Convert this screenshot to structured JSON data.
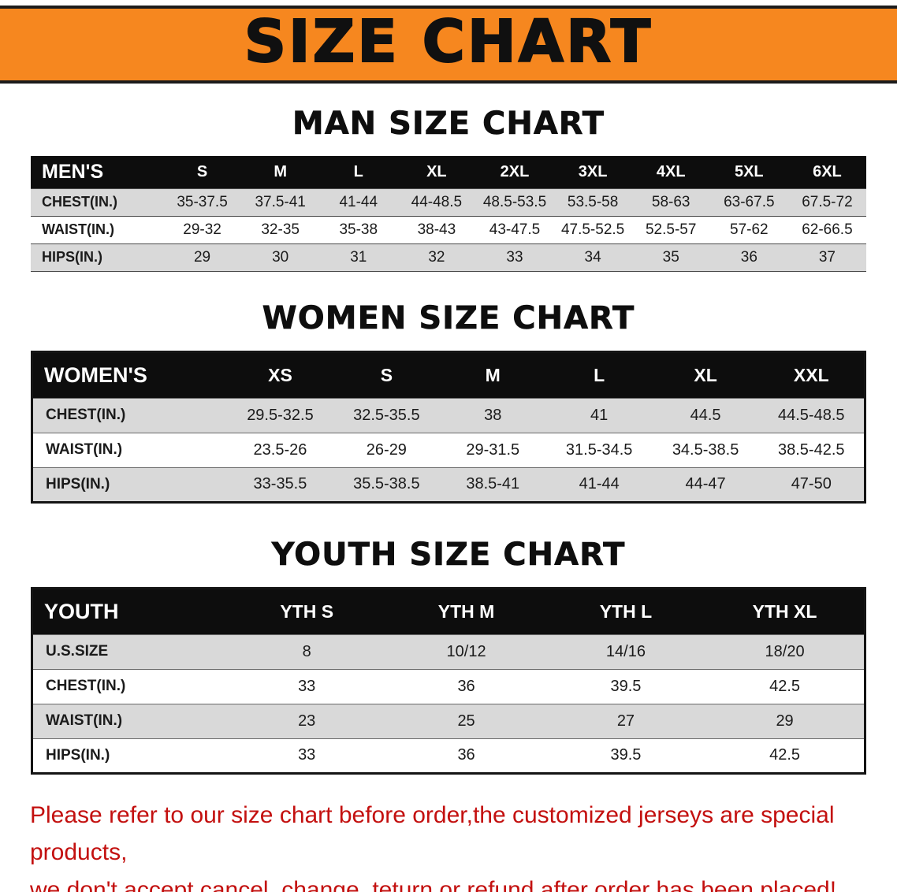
{
  "banner": {
    "title": "SIZE CHART"
  },
  "colors": {
    "banner_bg": "#f6871f",
    "header_bg": "#0d0d0d",
    "row_alt": "#d9d9d9",
    "note_red": "#c3100f"
  },
  "sections": [
    {
      "id": "men",
      "heading": "MAN SIZE CHART",
      "columns": [
        "MEN'S",
        "S",
        "M",
        "L",
        "XL",
        "2XL",
        "3XL",
        "4XL",
        "5XL",
        "6XL"
      ],
      "rows": [
        [
          "CHEST(IN.)",
          "35-37.5",
          "37.5-41",
          "41-44",
          "44-48.5",
          "48.5-53.5",
          "53.5-58",
          "58-63",
          "63-67.5",
          "67.5-72"
        ],
        [
          "WAIST(IN.)",
          "29-32",
          "32-35",
          "35-38",
          "38-43",
          "43-47.5",
          "47.5-52.5",
          "52.5-57",
          "57-62",
          "62-66.5"
        ],
        [
          "HIPS(IN.)",
          "29",
          "30",
          "31",
          "32",
          "33",
          "34",
          "35",
          "36",
          "37"
        ]
      ]
    },
    {
      "id": "women",
      "heading": "WOMEN SIZE CHART",
      "columns": [
        "WOMEN'S",
        "XS",
        "S",
        "M",
        "L",
        "XL",
        "XXL"
      ],
      "rows": [
        [
          "CHEST(IN.)",
          "29.5-32.5",
          "32.5-35.5",
          "38",
          "41",
          "44.5",
          "44.5-48.5"
        ],
        [
          "WAIST(IN.)",
          "23.5-26",
          "26-29",
          "29-31.5",
          "31.5-34.5",
          "34.5-38.5",
          "38.5-42.5"
        ],
        [
          "HIPS(IN.)",
          "33-35.5",
          "35.5-38.5",
          "38.5-41",
          "41-44",
          "44-47",
          "47-50"
        ]
      ]
    },
    {
      "id": "youth",
      "heading": "YOUTH SIZE CHART",
      "columns": [
        "YOUTH",
        "YTH S",
        "YTH M",
        "YTH L",
        "YTH XL"
      ],
      "rows": [
        [
          "U.S.SIZE",
          "8",
          "10/12",
          "14/16",
          "18/20"
        ],
        [
          "CHEST(IN.)",
          "33",
          "36",
          "39.5",
          "42.5"
        ],
        [
          "WAIST(IN.)",
          "23",
          "25",
          "27",
          "29"
        ],
        [
          "HIPS(IN.)",
          "33",
          "36",
          "39.5",
          "42.5"
        ]
      ]
    }
  ],
  "note": {
    "line1": "Please refer to our size chart before order,the customized jerseys are special products,",
    "line2": "we don't accept cancel, change, teturn or refund after order has been placed!"
  }
}
